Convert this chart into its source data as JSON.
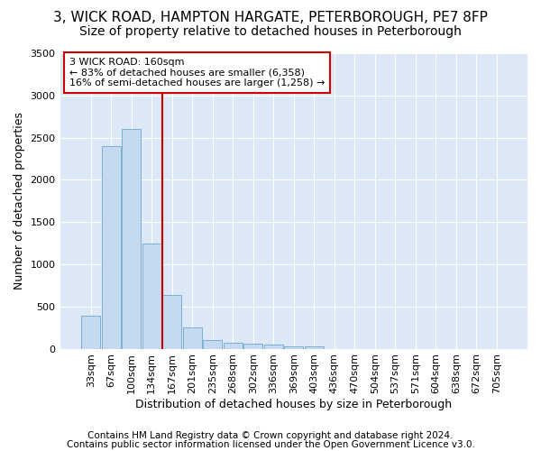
{
  "title_line1": "3, WICK ROAD, HAMPTON HARGATE, PETERBOROUGH, PE7 8FP",
  "title_line2": "Size of property relative to detached houses in Peterborough",
  "xlabel": "Distribution of detached houses by size in Peterborough",
  "ylabel": "Number of detached properties",
  "footer_line1": "Contains HM Land Registry data © Crown copyright and database right 2024.",
  "footer_line2": "Contains public sector information licensed under the Open Government Licence v3.0.",
  "categories": [
    "33sqm",
    "67sqm",
    "100sqm",
    "134sqm",
    "167sqm",
    "201sqm",
    "235sqm",
    "268sqm",
    "302sqm",
    "336sqm",
    "369sqm",
    "403sqm",
    "436sqm",
    "470sqm",
    "504sqm",
    "537sqm",
    "571sqm",
    "604sqm",
    "638sqm",
    "672sqm",
    "705sqm"
  ],
  "values": [
    390,
    2400,
    2600,
    1250,
    640,
    250,
    100,
    65,
    55,
    50,
    30,
    25,
    0,
    0,
    0,
    0,
    0,
    0,
    0,
    0,
    0
  ],
  "bar_color": "#c5d9f0",
  "bar_edge_color": "#7bafd4",
  "vline_index": 4,
  "vline_color": "#cc0000",
  "annotation_text": "3 WICK ROAD: 160sqm\n← 83% of detached houses are smaller (6,358)\n16% of semi-detached houses are larger (1,258) →",
  "annotation_box_edge_color": "#cc0000",
  "ylim": [
    0,
    3500
  ],
  "yticks": [
    0,
    500,
    1000,
    1500,
    2000,
    2500,
    3000,
    3500
  ],
  "fig_bg_color": "#ffffff",
  "plot_bg_color": "#dce8f5",
  "grid_color": "#ffffff",
  "title_fontsize": 11,
  "subtitle_fontsize": 10,
  "axis_label_fontsize": 9,
  "tick_fontsize": 8,
  "footer_fontsize": 7.5
}
